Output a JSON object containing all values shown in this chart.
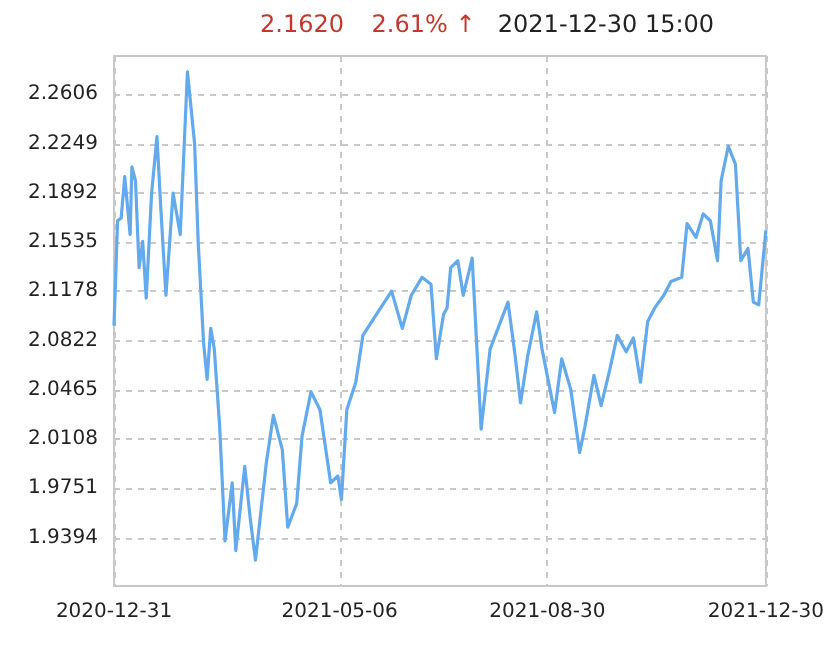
{
  "chart_data": {
    "type": "line",
    "title": "2.1620",
    "subtitle": "2.61% ↑",
    "annotations": [
      "2021-12-30 15:00"
    ],
    "x": [
      "2020-12-31",
      "2021-01-02",
      "2021-01-04",
      "2021-01-06",
      "2021-01-09",
      "2021-01-10",
      "2021-01-12",
      "2021-01-14",
      "2021-01-16",
      "2021-01-18",
      "2021-01-21",
      "2021-01-24",
      "2021-01-26",
      "2021-01-29",
      "2021-02-02",
      "2021-02-06",
      "2021-02-10",
      "2021-02-14",
      "2021-02-16",
      "2021-02-19",
      "2021-02-21",
      "2021-02-23",
      "2021-02-25",
      "2021-02-28",
      "2021-03-03",
      "2021-03-07",
      "2021-03-09",
      "2021-03-14",
      "2021-03-17",
      "2021-03-20",
      "2021-03-26",
      "2021-03-30",
      "2021-04-04",
      "2021-04-07",
      "2021-04-12",
      "2021-04-15",
      "2021-04-20",
      "2021-04-25",
      "2021-05-01",
      "2021-05-05",
      "2021-05-07",
      "2021-05-10",
      "2021-05-15",
      "2021-05-19",
      "2021-05-25",
      "2021-05-30",
      "2021-06-04",
      "2021-06-10",
      "2021-06-15",
      "2021-06-21",
      "2021-06-26",
      "2021-06-29",
      "2021-07-03",
      "2021-07-05",
      "2021-07-07",
      "2021-07-11",
      "2021-07-14",
      "2021-07-19",
      "2021-07-24",
      "2021-07-29",
      "2021-08-03",
      "2021-08-08",
      "2021-08-12",
      "2021-08-15",
      "2021-08-19",
      "2021-08-24",
      "2021-08-27",
      "2021-09-03",
      "2021-09-07",
      "2021-09-12",
      "2021-09-17",
      "2021-09-20",
      "2021-09-25",
      "2021-09-29",
      "2021-10-04",
      "2021-10-08",
      "2021-10-13",
      "2021-10-17",
      "2021-10-21",
      "2021-10-25",
      "2021-10-29",
      "2021-11-03",
      "2021-11-07",
      "2021-11-13",
      "2021-11-16",
      "2021-11-21",
      "2021-11-25",
      "2021-11-29",
      "2021-12-03",
      "2021-12-05",
      "2021-12-09",
      "2021-12-13",
      "2021-12-16",
      "2021-12-20",
      "2021-12-23",
      "2021-12-26",
      "2021-12-30"
    ],
    "series": [
      {
        "color": "#62aaec",
        "values": [
          2.093,
          2.169,
          2.171,
          2.201,
          2.159,
          2.208,
          2.198,
          2.135,
          2.154,
          2.113,
          2.189,
          2.23,
          2.181,
          2.115,
          2.189,
          2.159,
          2.277,
          2.225,
          2.154,
          2.081,
          2.054,
          2.091,
          2.076,
          2.02,
          1.937,
          1.979,
          1.93,
          1.991,
          1.954,
          1.923,
          1.993,
          2.028,
          2.003,
          1.947,
          1.964,
          2.013,
          2.045,
          2.032,
          1.979,
          1.984,
          1.967,
          2.032,
          2.052,
          2.086,
          2.098,
          2.108,
          2.118,
          2.091,
          2.115,
          2.128,
          2.123,
          2.069,
          2.101,
          2.106,
          2.135,
          2.14,
          2.115,
          2.142,
          2.018,
          2.076,
          2.093,
          2.11,
          2.071,
          2.037,
          2.071,
          2.103,
          2.076,
          2.03,
          2.069,
          2.047,
          2.001,
          2.02,
          2.057,
          2.035,
          2.062,
          2.086,
          2.074,
          2.084,
          2.052,
          2.096,
          2.106,
          2.115,
          2.125,
          2.128,
          2.167,
          2.157,
          2.174,
          2.169,
          2.14,
          2.198,
          2.223,
          2.21,
          2.14,
          2.149,
          2.11,
          2.108,
          2.162
        ]
      }
    ],
    "xlim": [
      "2020-12-31",
      "2021-12-30"
    ],
    "xticks": [
      "2020-12-31",
      "2021-05-06",
      "2021-08-30",
      "2021-12-30"
    ],
    "ylim": [
      1.9043,
      2.2884
    ],
    "yticks": [
      2.2606,
      2.2249,
      2.1892,
      2.1535,
      2.1178,
      2.0822,
      2.0465,
      2.0108,
      1.9751,
      1.9394
    ],
    "grid": true
  }
}
